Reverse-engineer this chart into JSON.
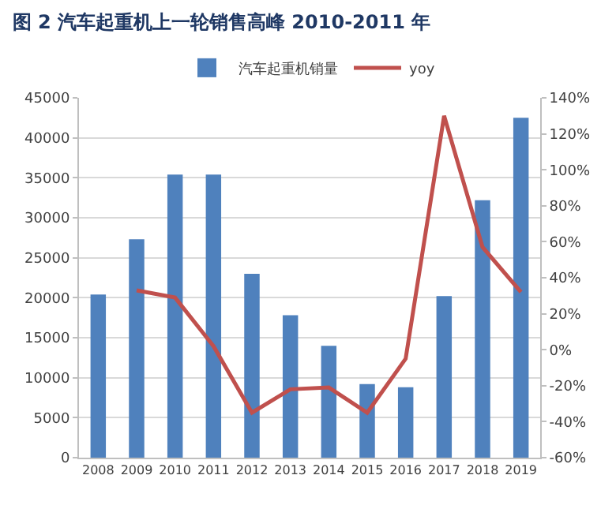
{
  "chart_data": {
    "type": "bar",
    "title": "图 2 汽车起重机上一轮销售高峰 2010-2011 年",
    "categories": [
      "2008",
      "2009",
      "2010",
      "2011",
      "2012",
      "2013",
      "2014",
      "2015",
      "2016",
      "2017",
      "2018",
      "2019"
    ],
    "series": [
      {
        "name": "汽车起重机销量",
        "color": "#4f81bd",
        "values": [
          20400,
          27300,
          35400,
          35400,
          23000,
          17800,
          14000,
          9200,
          8800,
          20200,
          32200,
          42500
        ]
      },
      {
        "name": "yoy",
        "type": "line",
        "axis": "y2",
        "color": "#c0504d",
        "values": [
          null,
          33,
          29,
          2,
          -35,
          -22,
          -21,
          -35,
          -5,
          130,
          57,
          32
        ]
      }
    ],
    "ylim": [
      0,
      45000
    ],
    "yticks": [
      0,
      5000,
      10000,
      15000,
      20000,
      25000,
      30000,
      35000,
      40000,
      45000
    ],
    "y2lim": [
      -60,
      140
    ],
    "y2ticks": [
      {
        "value": -60,
        "label": "-60%"
      },
      {
        "value": -40,
        "label": "-40%"
      },
      {
        "value": -20,
        "label": "-20%"
      },
      {
        "value": 0,
        "label": "0%"
      },
      {
        "value": 20,
        "label": "20%"
      },
      {
        "value": 40,
        "label": "40%"
      },
      {
        "value": 60,
        "label": "60%"
      },
      {
        "value": 80,
        "label": "80%"
      },
      {
        "value": 100,
        "label": "100%"
      },
      {
        "value": 120,
        "label": "120%"
      },
      {
        "value": 140,
        "label": "140%"
      }
    ],
    "grid": "y",
    "legend": "top",
    "marker": "none",
    "line_style": "solid"
  }
}
